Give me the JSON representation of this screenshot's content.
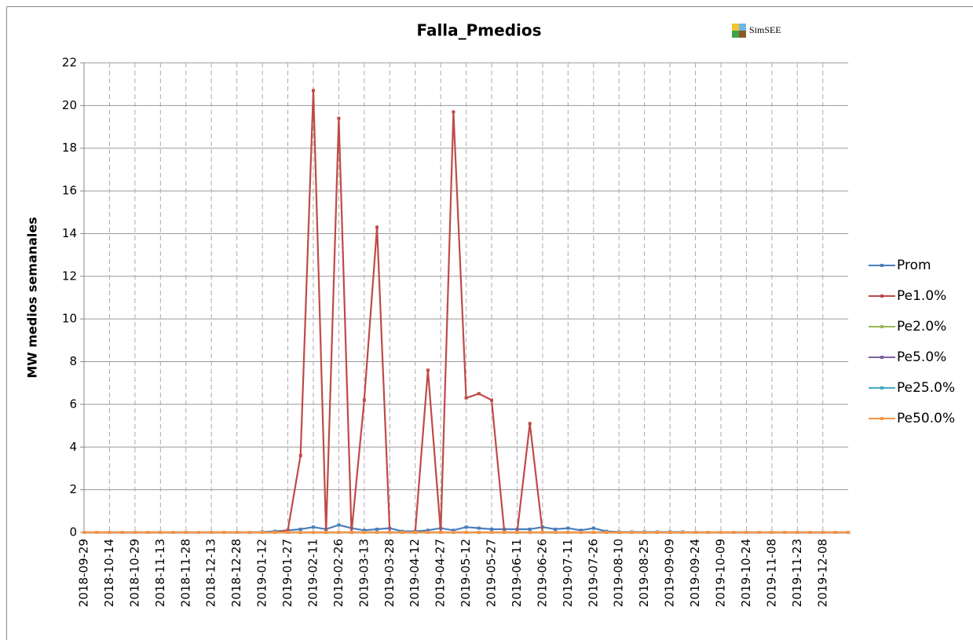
{
  "chart_data": {
    "type": "line",
    "title": "Falla_Pmedios",
    "logo_text": "SimSEE",
    "y_label": "MW medios semanales",
    "categories": [
      "2018-09-29",
      null,
      "2018-10-14",
      null,
      "2018-10-29",
      null,
      "2018-11-13",
      null,
      "2018-11-28",
      null,
      "2018-12-13",
      null,
      "2018-12-28",
      null,
      "2019-01-12",
      null,
      "2019-01-27",
      null,
      "2019-02-11",
      null,
      "2019-02-26",
      null,
      "2019-03-13",
      null,
      "2019-03-28",
      null,
      "2019-04-12",
      null,
      "2019-04-27",
      null,
      "2019-05-12",
      null,
      "2019-05-27",
      null,
      "2019-06-11",
      null,
      "2019-06-26",
      null,
      "2019-07-11",
      null,
      "2019-07-26",
      null,
      "2019-08-10",
      null,
      "2019-08-25",
      null,
      "2019-09-09",
      null,
      "2019-09-24",
      null,
      "2019-10-09",
      null,
      "2019-10-24",
      null,
      "2019-11-08",
      null,
      "2019-11-23",
      null,
      "2019-12-08",
      null,
      null
    ],
    "series": [
      {
        "name": "Prom",
        "color": "#4a7ebb",
        "values": [
          0,
          0,
          0,
          0,
          0,
          0,
          0,
          0,
          0,
          0,
          0,
          0,
          0,
          0,
          0.02,
          0.05,
          0.1,
          0.15,
          0.25,
          0.15,
          0.35,
          0.2,
          0.1,
          0.15,
          0.2,
          0.05,
          0.05,
          0.1,
          0.2,
          0.1,
          0.25,
          0.2,
          0.15,
          0.15,
          0.15,
          0.15,
          0.25,
          0.15,
          0.2,
          0.1,
          0.2,
          0.05,
          0.02,
          0.02,
          0.02,
          0.02,
          0.02,
          0.02,
          0,
          0,
          0,
          0,
          0,
          0,
          0,
          0,
          0,
          0,
          0,
          0,
          0
        ]
      },
      {
        "name": "Pe1.0%",
        "color": "#be4b48",
        "values": [
          0,
          0,
          0,
          0,
          0,
          0,
          0,
          0,
          0,
          0,
          0,
          0,
          0,
          0,
          0,
          0,
          0.1,
          3.6,
          20.7,
          0,
          19.4,
          0,
          6.2,
          14.3,
          0,
          0,
          0,
          7.6,
          0,
          19.7,
          6.3,
          6.5,
          6.2,
          0,
          0,
          5.1,
          0,
          0,
          0,
          0,
          0,
          0,
          0,
          0,
          0,
          0,
          0,
          0,
          0,
          0,
          0,
          0,
          0,
          0,
          0,
          0,
          0,
          0,
          0,
          0,
          0
        ]
      },
      {
        "name": "Pe2.0%",
        "color": "#98b954",
        "values": [
          0,
          0,
          0,
          0,
          0,
          0,
          0,
          0,
          0,
          0,
          0,
          0,
          0,
          0,
          0,
          0,
          0,
          0,
          0,
          0,
          0,
          0,
          0,
          0,
          0,
          0,
          0,
          0,
          0,
          0,
          0,
          0,
          0,
          0,
          0,
          0,
          0,
          0,
          0,
          0,
          0,
          0,
          0,
          0,
          0,
          0,
          0,
          0,
          0,
          0,
          0,
          0,
          0,
          0,
          0,
          0,
          0,
          0,
          0,
          0,
          0
        ]
      },
      {
        "name": "Pe5.0%",
        "color": "#7d60a0",
        "values": [
          0,
          0,
          0,
          0,
          0,
          0,
          0,
          0,
          0,
          0,
          0,
          0,
          0,
          0,
          0,
          0,
          0,
          0,
          0,
          0,
          0,
          0,
          0,
          0,
          0,
          0,
          0,
          0,
          0,
          0,
          0,
          0,
          0,
          0,
          0,
          0,
          0,
          0,
          0,
          0,
          0,
          0,
          0,
          0,
          0,
          0,
          0,
          0,
          0,
          0,
          0,
          0,
          0,
          0,
          0,
          0,
          0,
          0,
          0,
          0,
          0
        ]
      },
      {
        "name": "Pe25.0%",
        "color": "#46aac5",
        "values": [
          0,
          0,
          0,
          0,
          0,
          0,
          0,
          0,
          0,
          0,
          0,
          0,
          0,
          0,
          0,
          0,
          0,
          0,
          0,
          0,
          0,
          0,
          0,
          0,
          0,
          0,
          0,
          0,
          0,
          0,
          0,
          0,
          0,
          0,
          0,
          0,
          0,
          0,
          0,
          0,
          0,
          0,
          0,
          0,
          0,
          0,
          0,
          0,
          0,
          0,
          0,
          0,
          0,
          0,
          0,
          0,
          0,
          0,
          0,
          0,
          0
        ]
      },
      {
        "name": "Pe50.0%",
        "color": "#f79646",
        "values": [
          0,
          0,
          0,
          0,
          0,
          0,
          0,
          0,
          0,
          0,
          0,
          0,
          0,
          0,
          0,
          0,
          0,
          0,
          0,
          0,
          0,
          0,
          0,
          0,
          0,
          0,
          0,
          0,
          0,
          0,
          0,
          0,
          0,
          0,
          0,
          0,
          0,
          0,
          0,
          0,
          0,
          0,
          0,
          0,
          0,
          0,
          0,
          0,
          0,
          0,
          0,
          0,
          0,
          0,
          0,
          0,
          0,
          0,
          0,
          0,
          0
        ]
      }
    ],
    "ylim": [
      0,
      22
    ],
    "yticks": [
      0,
      2,
      4,
      6,
      8,
      10,
      12,
      14,
      16,
      18,
      20,
      22
    ],
    "grid": true,
    "legend": "right"
  }
}
